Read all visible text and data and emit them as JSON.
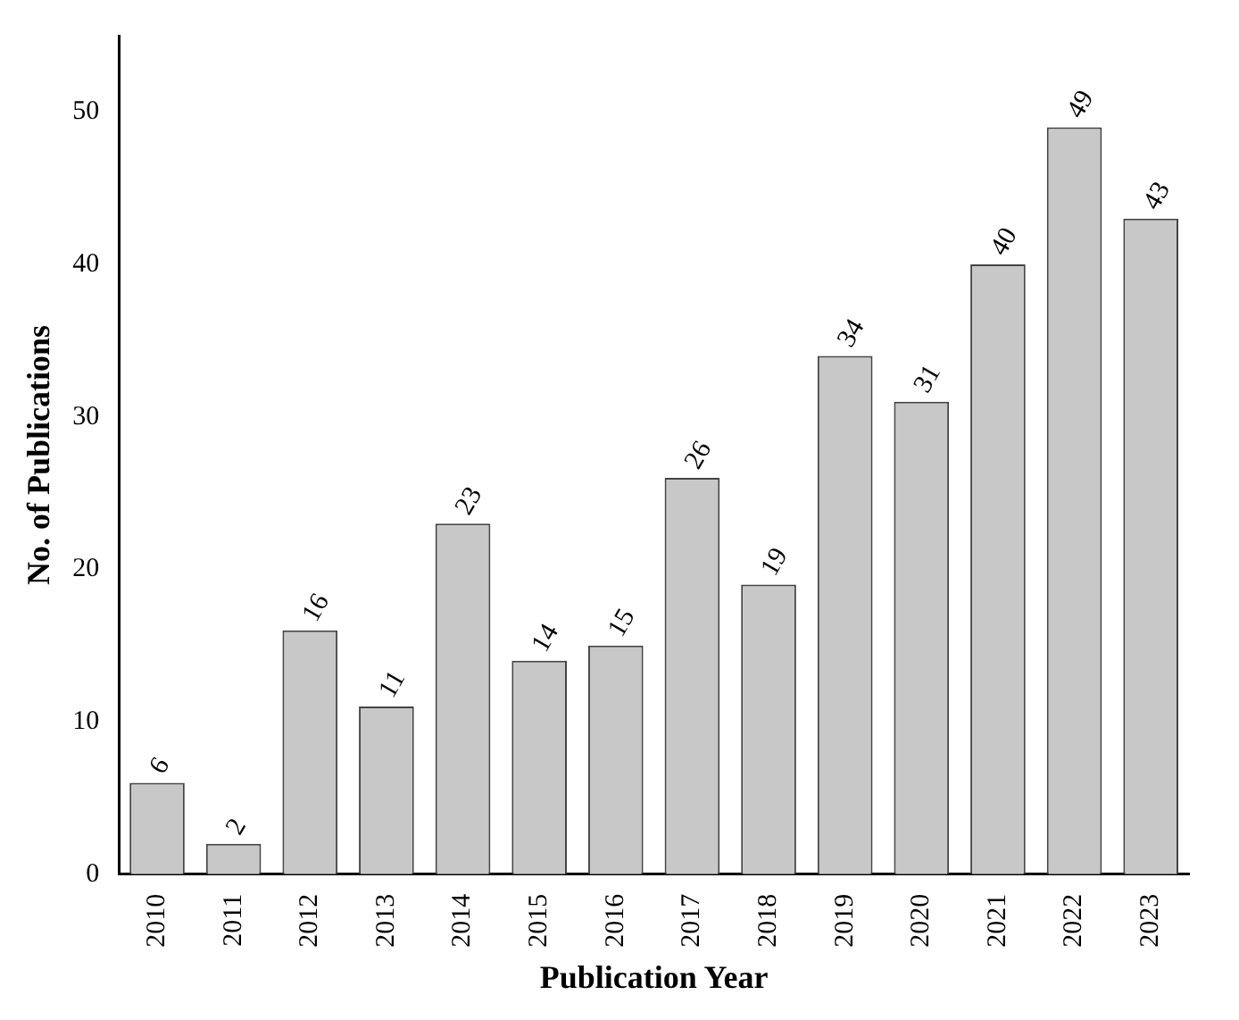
{
  "chart_data": {
    "type": "bar",
    "xlabel": "Publication Year",
    "ylabel": "No. of Publications",
    "categories": [
      "2010",
      "2011",
      "2012",
      "2013",
      "2014",
      "2015",
      "2016",
      "2017",
      "2018",
      "2019",
      "2020",
      "2021",
      "2022",
      "2023"
    ],
    "values": [
      6,
      2,
      16,
      11,
      23,
      14,
      15,
      26,
      19,
      34,
      31,
      40,
      49,
      43
    ],
    "color": "#c8c8c8",
    "ylim": [
      0,
      55
    ],
    "yticks": [
      0,
      10,
      20,
      30,
      40,
      50
    ],
    "grid": false,
    "legend": false,
    "data_labels": true
  }
}
